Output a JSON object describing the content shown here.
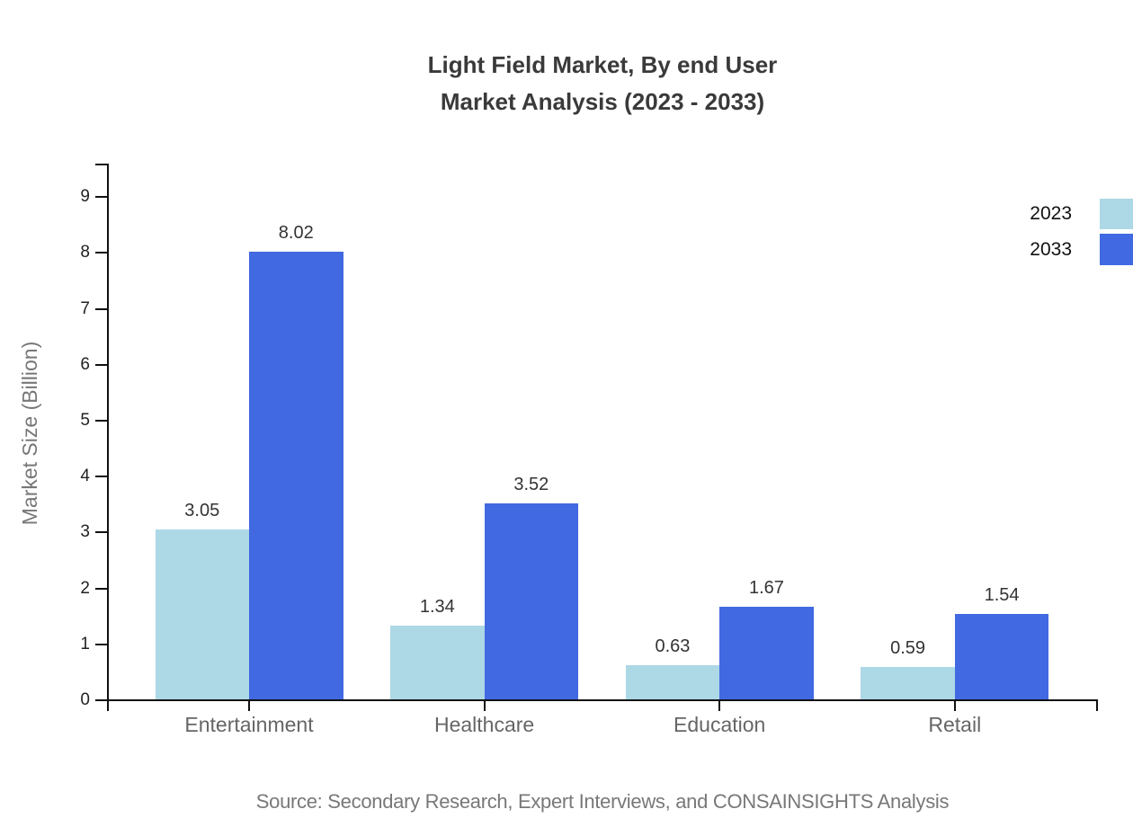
{
  "title": {
    "line1": "Light Field Market, By end User",
    "line2": "Market Analysis (2023 - 2033)"
  },
  "source": "Source: Secondary Research, Expert Interviews, and CONSAINSIGHTS Analysis",
  "chart_data": {
    "type": "bar",
    "categories": [
      "Entertainment",
      "Healthcare",
      "Education",
      "Retail"
    ],
    "series": [
      {
        "name": "2023",
        "color": "#ADD8E6",
        "values": [
          3.05,
          1.34,
          0.63,
          0.59
        ]
      },
      {
        "name": "2033",
        "color": "#4169E1",
        "values": [
          8.02,
          3.52,
          1.67,
          1.54
        ]
      }
    ],
    "title": "Light Field Market, By end User Market Analysis (2023 - 2033)",
    "xlabel": "",
    "ylabel": "Market Size (Billion)",
    "ylim": [
      0,
      9
    ],
    "yticks": [
      0,
      1,
      2,
      3,
      4,
      5,
      6,
      7,
      8,
      9
    ],
    "grid": false,
    "legend_position": "top-right",
    "value_labels": true,
    "value_label_decimals": 2
  },
  "colors": {
    "axis": "#111111",
    "y_tick_label": "#222222",
    "category_label": "#666666",
    "value_label": "#333333",
    "title": "#3a3a3a",
    "ylabel": "#777777",
    "source": "#787878",
    "legend_label": "#111111"
  }
}
